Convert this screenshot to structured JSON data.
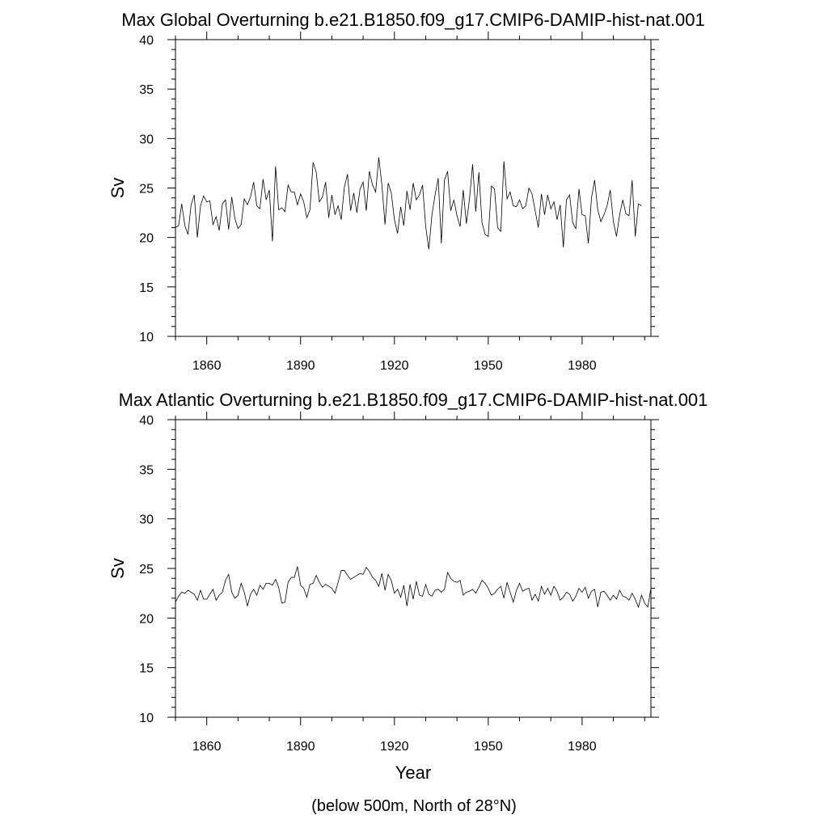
{
  "footnote": "(below 500m, North of 28°N)",
  "chart_data": [
    {
      "type": "line",
      "title": "Max Global Overturning b.e21.B1850.f09_g17.CMIP6-DAMIP-hist-nat.001",
      "xlabel": "",
      "ylabel": "Sv",
      "xlim": [
        1850,
        2002
      ],
      "ylim": [
        10,
        40
      ],
      "xticks": [
        1860,
        1890,
        1920,
        1950,
        1980
      ],
      "yticks": [
        10,
        15,
        20,
        25,
        30,
        35,
        40
      ],
      "x_start": 1850,
      "x_step": 1,
      "series": [
        {
          "values": [
            21.0,
            21.2,
            23.4,
            21.2,
            20.3,
            23.3,
            24.3,
            20.0,
            23.2,
            24.2,
            23.6,
            23.7,
            21.3,
            22.1,
            20.7,
            23.4,
            23.8,
            20.8,
            24.1,
            21.9,
            20.9,
            21.3,
            23.9,
            23.3,
            24.1,
            25.6,
            23.2,
            22.9,
            25.9,
            23.8,
            24.8,
            19.6,
            27.2,
            22.8,
            23.0,
            22.6,
            25.3,
            24.6,
            24.6,
            23.3,
            24.4,
            23.6,
            22.0,
            22.8,
            27.6,
            26.6,
            23.6,
            24.1,
            25.6,
            22.0,
            24.3,
            22.3,
            23.2,
            21.8,
            25.1,
            26.4,
            22.7,
            24.5,
            22.5,
            24.9,
            25.6,
            22.7,
            26.7,
            25.3,
            24.6,
            28.1,
            25.3,
            21.3,
            25.5,
            24.5,
            21.8,
            20.4,
            23.1,
            21.2,
            24.7,
            22.8,
            25.5,
            23.8,
            24.3,
            25.3,
            21.1,
            18.8,
            22.3,
            24.3,
            26.0,
            19.4,
            25.8,
            26.7,
            22.7,
            23.8,
            22.2,
            21.1,
            24.8,
            21.4,
            23.9,
            27.4,
            22.6,
            26.6,
            21.5,
            20.3,
            20.1,
            25.2,
            24.9,
            21.0,
            20.6,
            27.7,
            23.9,
            24.6,
            23.2,
            23.1,
            23.8,
            22.9,
            23.2,
            25.0,
            24.4,
            22.7,
            21.0,
            24.4,
            22.3,
            24.3,
            22.9,
            23.6,
            21.8,
            23.3,
            19.0,
            23.8,
            24.3,
            21.5,
            20.9,
            24.9,
            22.3,
            22.2,
            19.4,
            24.0,
            25.8,
            22.8,
            21.6,
            22.3,
            23.2,
            24.8,
            21.6,
            20.1,
            22.3,
            23.8,
            22.4,
            22.2,
            25.8,
            20.1,
            23.4,
            23.2
          ]
        }
      ]
    },
    {
      "type": "line",
      "title": "Max Atlantic Overturning b.e21.B1850.f09_g17.CMIP6-DAMIP-hist-nat.001",
      "xlabel": "Year",
      "ylabel": "Sv",
      "xlim": [
        1850,
        2002
      ],
      "ylim": [
        10,
        40
      ],
      "xticks": [
        1860,
        1890,
        1920,
        1950,
        1980
      ],
      "yticks": [
        10,
        15,
        20,
        25,
        30,
        35,
        40
      ],
      "x_start": 1850,
      "x_step": 1,
      "series": [
        {
          "values": [
            21.6,
            22.2,
            22.6,
            22.5,
            22.8,
            22.6,
            22.4,
            21.8,
            22.8,
            21.9,
            21.9,
            22.4,
            22.9,
            21.8,
            22.3,
            22.6,
            23.8,
            24.4,
            22.6,
            22.0,
            22.3,
            23.5,
            22.6,
            21.2,
            22.4,
            22.9,
            22.3,
            23.3,
            22.9,
            23.5,
            23.5,
            23.3,
            23.9,
            23.1,
            21.5,
            21.6,
            23.6,
            24.1,
            24.1,
            25.2,
            23.3,
            23.0,
            22.1,
            23.4,
            23.5,
            24.3,
            23.6,
            23.1,
            23.4,
            23.2,
            23.0,
            22.5,
            23.6,
            24.8,
            24.8,
            24.3,
            23.9,
            24.1,
            24.3,
            24.5,
            24.4,
            25.1,
            24.7,
            24.1,
            23.8,
            23.2,
            24.5,
            22.8,
            24.4,
            23.8,
            22.5,
            22.9,
            22.1,
            23.3,
            21.2,
            23.4,
            21.9,
            23.7,
            22.3,
            22.2,
            23.4,
            22.4,
            22.2,
            22.8,
            22.9,
            22.6,
            22.9,
            24.6,
            24.0,
            23.7,
            23.6,
            23.8,
            22.3,
            22.6,
            22.7,
            22.9,
            22.5,
            23.1,
            23.8,
            23.5,
            23.0,
            22.3,
            22.5,
            22.9,
            23.2,
            22.0,
            23.6,
            22.6,
            21.6,
            22.8,
            23.5,
            22.7,
            22.9,
            23.0,
            21.8,
            22.4,
            21.7,
            23.2,
            22.4,
            23.0,
            22.3,
            23.2,
            22.7,
            21.8,
            22.1,
            22.6,
            22.4,
            21.7,
            22.2,
            23.0,
            22.6,
            23.1,
            22.0,
            22.7,
            22.9,
            21.1,
            22.6,
            22.7,
            22.3,
            21.8,
            22.3,
            21.9,
            22.8,
            22.2,
            22.1,
            21.8,
            22.5,
            21.9,
            21.1,
            22.3,
            21.5,
            21.1,
            23.0
          ]
        }
      ]
    }
  ]
}
